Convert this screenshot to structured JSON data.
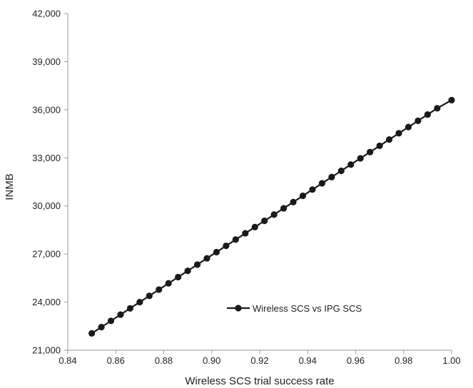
{
  "chart_data": {
    "type": "line",
    "title": "",
    "xlabel": "Wireless SCS trial success rate",
    "ylabel": "INMB",
    "xlim": [
      0.84,
      1.0
    ],
    "ylim": [
      21000,
      42000
    ],
    "x_ticks": [
      "0.84",
      "0.86",
      "0.88",
      "0.90",
      "0.92",
      "0.94",
      "0.96",
      "0.98",
      "1.00"
    ],
    "y_ticks": [
      "21,000",
      "24,000",
      "27,000",
      "30,000",
      "33,000",
      "36,000",
      "39,000",
      "42,000"
    ],
    "grid": false,
    "legend_position": "lower-right inside plot",
    "series": [
      {
        "name": "Wireless SCS vs IPG SCS",
        "color": "#1a1a1a",
        "marker": "circle",
        "x": [
          0.85,
          0.854,
          0.858,
          0.862,
          0.866,
          0.87,
          0.874,
          0.878,
          0.882,
          0.886,
          0.89,
          0.894,
          0.898,
          0.902,
          0.906,
          0.91,
          0.914,
          0.918,
          0.922,
          0.926,
          0.93,
          0.934,
          0.938,
          0.942,
          0.946,
          0.95,
          0.954,
          0.958,
          0.962,
          0.966,
          0.97,
          0.974,
          0.978,
          0.982,
          0.986,
          0.99,
          0.994,
          1.0
        ],
        "y": [
          22050,
          22440,
          22830,
          23220,
          23610,
          24000,
          24390,
          24780,
          25170,
          25560,
          25950,
          26340,
          26730,
          27120,
          27510,
          27900,
          28290,
          28680,
          29070,
          29460,
          29850,
          30240,
          30630,
          31020,
          31410,
          31800,
          32190,
          32580,
          32970,
          33360,
          33750,
          34140,
          34530,
          34920,
          35310,
          35700,
          36090,
          36600
        ]
      }
    ]
  }
}
